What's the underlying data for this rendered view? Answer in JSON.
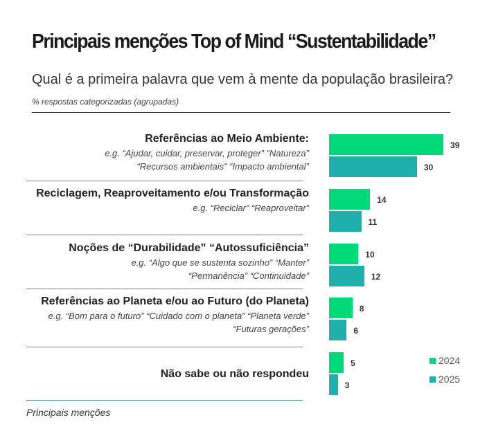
{
  "chart_data": {
    "type": "bar",
    "orientation": "horizontal",
    "title": "Principais menções Top of Mind “Sustentabilidade”",
    "subtitle": "Qual é a primeira palavra que vem à mente da população brasileira?",
    "note": "% respostas categorizadas (agrupadas)",
    "footer": "Principais menções",
    "categories": [
      {
        "label": "Referências ao Meio Ambiente:",
        "examples": [
          "e.g. “Ajudar, cuidar, preservar, proteger” “Natureza”",
          "“Recursos ambientais” “Impacto ambiental”"
        ]
      },
      {
        "label": "Reciclagem, Reaproveitamento e/ou Transformação",
        "examples": [
          "e.g. “Reciclar” “Reaproveitar”"
        ]
      },
      {
        "label": "Noções de “Durabilidade” “Autossuficiência”",
        "examples": [
          "e.g. “Algo que se sustenta sozinho” “Manter”",
          "“Permanência” “Continuidade”"
        ]
      },
      {
        "label": "Referências ao Planeta e/ou ao Futuro (do Planeta)",
        "examples": [
          "e.g. “Bom para o futuro” “Cuidado com o planeta” “Planeta verde” “Futuras gerações”"
        ]
      },
      {
        "label": "Não sabe ou não respondeu",
        "examples": []
      }
    ],
    "series": [
      {
        "name": "2024",
        "color": "#00d97a",
        "values": [
          39,
          14,
          10,
          8,
          5
        ]
      },
      {
        "name": "2025",
        "color": "#1fb0ac",
        "values": [
          30,
          11,
          12,
          6,
          3
        ]
      }
    ],
    "legend_position": "bottom-right",
    "grid": false
  }
}
